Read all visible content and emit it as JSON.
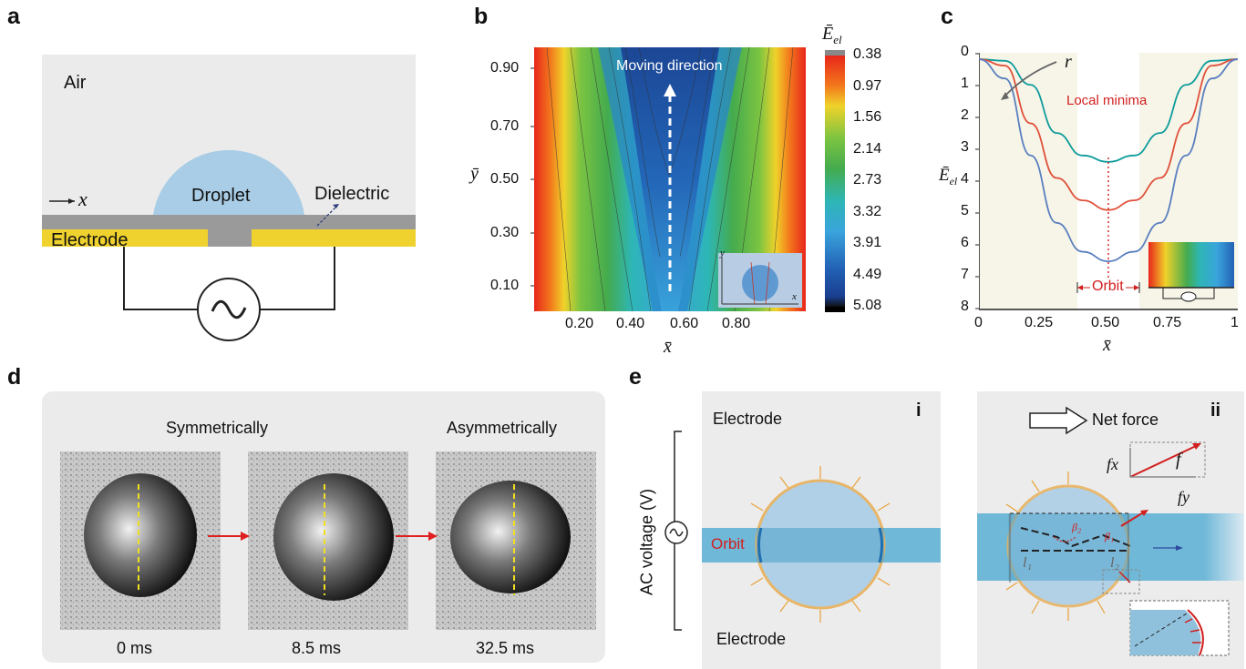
{
  "panels": {
    "a": {
      "label": "a",
      "air": "Air",
      "x_axis": "x",
      "droplet": "Droplet",
      "dielectric": "Dielectric",
      "electrode": "Electrode"
    },
    "b": {
      "label": "b",
      "ylabel": "ȳ",
      "xlabel": "x̄",
      "yticks": [
        "0.90",
        "0.70",
        "0.50",
        "0.30",
        "0.10"
      ],
      "xticks": [
        "0.20",
        "0.40",
        "0.60",
        "0.80"
      ],
      "colorbar_title": "Ē",
      "colorbar_subscript": "el",
      "colorbar_ticks": [
        "0.38",
        "0.97",
        "1.56",
        "2.14",
        "2.73",
        "3.32",
        "3.91",
        "4.49",
        "5.08"
      ],
      "annotation": "Moving direction",
      "inset_y": "y",
      "inset_x": "x"
    },
    "c": {
      "label": "c",
      "ylabel": "Ē",
      "ylabel_subscript": "el",
      "xlabel": "x̄",
      "yticks": [
        "0",
        "1",
        "2",
        "3",
        "4",
        "5",
        "6",
        "7",
        "8"
      ],
      "xticks": [
        "0",
        "0.25",
        "0.50",
        "0.75",
        "1"
      ],
      "r_label": "r",
      "local_minima": "Local minima",
      "orbit": "Orbit"
    },
    "d": {
      "label": "d",
      "symmetrically": "Symmetrically",
      "asymmetrically": "Asymmetrically",
      "times": [
        "0 ms",
        "8.5 ms",
        "32.5 ms"
      ]
    },
    "e": {
      "label": "e",
      "sub_i": "i",
      "sub_ii": "ii",
      "electrode_top": "Electrode",
      "electrode_bottom": "Electrode",
      "ac_voltage": "AC voltage (V)",
      "orbit": "Orbit",
      "net_force": "Net force",
      "f": "f",
      "fx": "fx",
      "fy": "fy",
      "beta1": "β₁",
      "beta2": "β₂",
      "l1": "l₁",
      "l2": "l₂"
    }
  },
  "chart_data": {
    "type": "line",
    "x": [
      0,
      0.1,
      0.2,
      0.3,
      0.4,
      0.5,
      0.6,
      0.7,
      0.8,
      0.9,
      1
    ],
    "series": [
      {
        "values": [
          0.2,
          0.25,
          1.0,
          2.5,
          3.2,
          3.4,
          3.2,
          2.5,
          1.0,
          0.25,
          0.2
        ]
      },
      {
        "values": [
          0.2,
          0.4,
          2.2,
          3.9,
          4.6,
          4.9,
          4.6,
          3.9,
          2.2,
          0.4,
          0.2
        ]
      },
      {
        "values": [
          0.2,
          0.8,
          3.2,
          5.3,
          6.2,
          6.5,
          6.2,
          5.3,
          3.2,
          0.8,
          0.2
        ]
      }
    ],
    "xlim": [
      0,
      1
    ],
    "ylim": [
      8,
      0
    ],
    "colors": [
      "#0f9b9b",
      "#e0503a",
      "#5a7fbf"
    ]
  }
}
